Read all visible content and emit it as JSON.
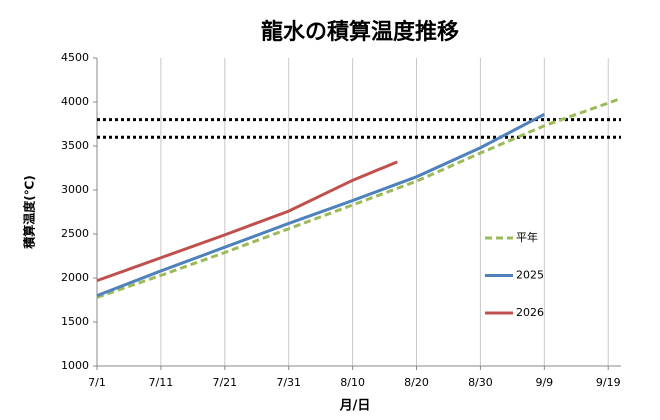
{
  "chart_data": {
    "type": "line",
    "title": "龍水の積算温度推移",
    "x_label": "月/日",
    "y_label": "積算温度(℃)",
    "xlim": [
      0,
      82
    ],
    "ylim": [
      1000,
      4500
    ],
    "xticks": [
      {
        "value": 0,
        "label": "7/1"
      },
      {
        "value": 10,
        "label": "7/11"
      },
      {
        "value": 20,
        "label": "7/21"
      },
      {
        "value": 30,
        "label": "7/31"
      },
      {
        "value": 40,
        "label": "8/10"
      },
      {
        "value": 50,
        "label": "8/20"
      },
      {
        "value": 60,
        "label": "8/30"
      },
      {
        "value": 70,
        "label": "9/9"
      },
      {
        "value": 80,
        "label": "9/19"
      }
    ],
    "yticks": [
      1000,
      1500,
      2000,
      2500,
      3000,
      3500,
      4000,
      4500
    ],
    "x_grid": true,
    "legend": "right",
    "reference_lines": [
      3800,
      3600
    ],
    "series": [
      {
        "name": "平年",
        "color": "#9bbb59",
        "dashed": true,
        "x": [
          0,
          10,
          20,
          30,
          40,
          50,
          60,
          70,
          82
        ],
        "values": [
          1780,
          2030,
          2290,
          2560,
          2830,
          3100,
          3420,
          3730,
          4040
        ]
      },
      {
        "name": "2025",
        "color": "#4f81bd",
        "x": [
          0,
          10,
          20,
          30,
          40,
          50,
          60,
          70
        ],
        "values": [
          1800,
          2080,
          2350,
          2620,
          2880,
          3150,
          3480,
          3860
        ]
      },
      {
        "name": "2026",
        "color": "#c0504d",
        "x": [
          0,
          10,
          20,
          30,
          40,
          47
        ],
        "values": [
          1970,
          2230,
          2490,
          2760,
          3110,
          3320
        ]
      }
    ]
  }
}
